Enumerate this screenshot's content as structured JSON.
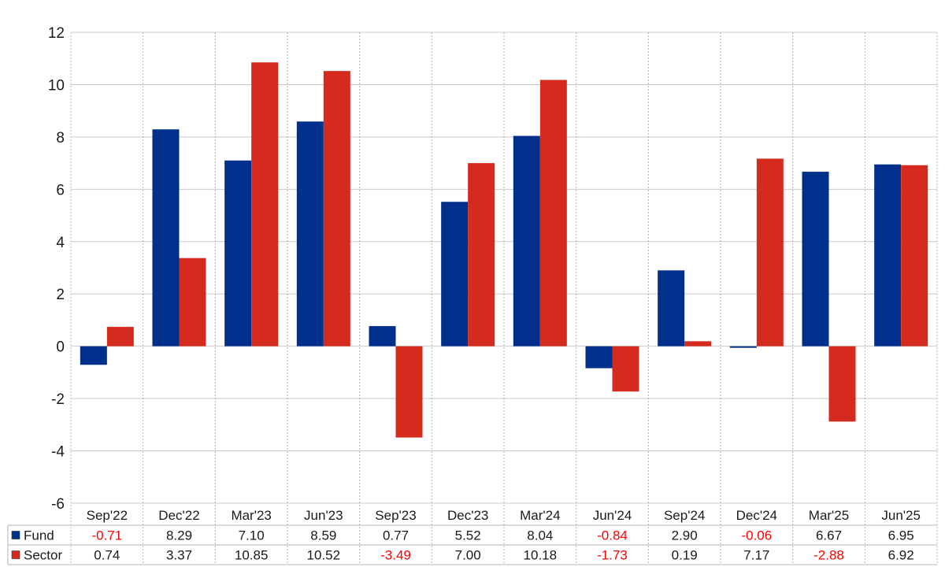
{
  "chart_data": {
    "type": "bar",
    "categories": [
      "Sep'22",
      "Dec'22",
      "Mar'23",
      "Jun'23",
      "Sep'23",
      "Dec'23",
      "Mar'24",
      "Jun'24",
      "Sep'24",
      "Dec'24",
      "Mar'25",
      "Jun'25"
    ],
    "series": [
      {
        "name": "Fund",
        "color": "#00308c",
        "values": [
          -0.71,
          8.29,
          7.1,
          8.59,
          0.77,
          5.52,
          8.04,
          -0.84,
          2.9,
          -0.06,
          6.67,
          6.95
        ],
        "labels": [
          "-0.71",
          "8.29",
          "7.10",
          "8.59",
          "0.77",
          "5.52",
          "8.04",
          "-0.84",
          "2.90",
          "-0.06",
          "6.67",
          "6.95"
        ]
      },
      {
        "name": "Sector",
        "color": "#d52b1e",
        "values": [
          0.74,
          3.37,
          10.85,
          10.52,
          -3.49,
          7.0,
          10.18,
          -1.73,
          0.19,
          7.17,
          -2.88,
          6.92
        ],
        "labels": [
          "0.74",
          "3.37",
          "10.85",
          "10.52",
          "-3.49",
          "7.00",
          "10.18",
          "-1.73",
          "0.19",
          "7.17",
          "-2.88",
          "6.92"
        ]
      }
    ],
    "ylim": [
      -6,
      12
    ],
    "yticks": [
      12,
      10,
      8,
      6,
      4,
      2,
      0,
      -2,
      -4,
      -6
    ],
    "grid": true,
    "negative_label_color": "#ff0000",
    "legend": "data-table-below"
  }
}
